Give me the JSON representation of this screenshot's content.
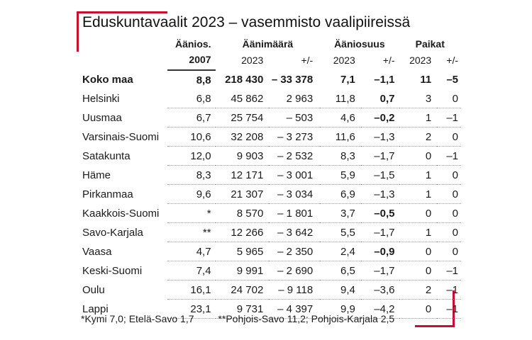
{
  "title": "Eduskuntavaalit 2023 – vasemmisto vaalipiireissä",
  "header": {
    "group1": "Äänios.",
    "group2": "Äänimäärä",
    "group3": "Ääniosuus",
    "group4": "Paikat",
    "sub": [
      "2007",
      "2023",
      "+/-",
      "2023",
      "+/-",
      "2023",
      "+/-"
    ]
  },
  "total": {
    "name": "Koko maa",
    "share2007": "8,8",
    "votes2023": "218 430",
    "votes_change": "– 33 378",
    "share2023": "7,1",
    "share_change": "–1,1",
    "seats2023": "11",
    "seats_change": "–5"
  },
  "rows": [
    {
      "name": "Helsinki",
      "share2007": "6,8",
      "votes2023": "45 862",
      "votes_change": "2 963",
      "share2023": "11,8",
      "share_change": "0,7",
      "seats2023": "3",
      "seats_change": "0"
    },
    {
      "name": "Uusmaa",
      "share2007": "6,7",
      "votes2023": "25 754",
      "votes_change": "– 503",
      "share2023": "4,6",
      "share_change": "–0,2",
      "seats2023": "1",
      "seats_change": "–1"
    },
    {
      "name": "Varsinais-Suomi",
      "share2007": "10,6",
      "votes2023": "32 208",
      "votes_change": "– 3 273",
      "share2023": "11,6",
      "share_change": "–1,3",
      "seats2023": "2",
      "seats_change": "0"
    },
    {
      "name": "Satakunta",
      "share2007": "12,0",
      "votes2023": "9 903",
      "votes_change": "– 2 532",
      "share2023": "8,3",
      "share_change": "–1,7",
      "seats2023": "0",
      "seats_change": "–1"
    },
    {
      "name": "Häme",
      "share2007": "8,3",
      "votes2023": "12 171",
      "votes_change": "– 3 001",
      "share2023": "5,9",
      "share_change": "–1,5",
      "seats2023": "1",
      "seats_change": "0"
    },
    {
      "name": "Pirkanmaa",
      "share2007": "9,6",
      "votes2023": "21 307",
      "votes_change": "– 3 034",
      "share2023": "6,9",
      "share_change": "–1,3",
      "seats2023": "1",
      "seats_change": "0"
    },
    {
      "name": "Kaakkois-Suomi",
      "share2007": "*",
      "votes2023": "8 570",
      "votes_change": "– 1 801",
      "share2023": "3,7",
      "share_change": "–0,5",
      "seats2023": "0",
      "seats_change": "0"
    },
    {
      "name": "Savo-Karjala",
      "share2007": "**",
      "votes2023": "12 266",
      "votes_change": "– 3 642",
      "share2023": "5,5",
      "share_change": "–1,7",
      "seats2023": "1",
      "seats_change": "0"
    },
    {
      "name": "Vaasa",
      "share2007": "4,7",
      "votes2023": "5 965",
      "votes_change": "– 2 350",
      "share2023": "2,4",
      "share_change": "–0,9",
      "seats2023": "0",
      "seats_change": "0"
    },
    {
      "name": "Keski-Suomi",
      "share2007": "7,4",
      "votes2023": "9 991",
      "votes_change": "– 2 690",
      "share2023": "6,5",
      "share_change": "–1,7",
      "seats2023": "0",
      "seats_change": "–1"
    },
    {
      "name": "Oulu",
      "share2007": "16,1",
      "votes2023": "24 702",
      "votes_change": "– 9 118",
      "share2023": "9,4",
      "share_change": "–3,6",
      "seats2023": "2",
      "seats_change": "–1"
    },
    {
      "name": "Lappi",
      "share2007": "23,1",
      "votes2023": "9 731",
      "votes_change": "– 4 397",
      "share2023": "9,9",
      "share_change": "–4,2",
      "seats2023": "0",
      "seats_change": "–1"
    }
  ],
  "footnotes": {
    "note1": "*Kymi 7,0; Etelä-Savo 1,7",
    "note2": "**Pohjois-Savo 11,2; Pohjois-Karjala 2,5"
  },
  "colors": {
    "frame_accent": "#c8102e",
    "text": "#1a1a1a"
  }
}
